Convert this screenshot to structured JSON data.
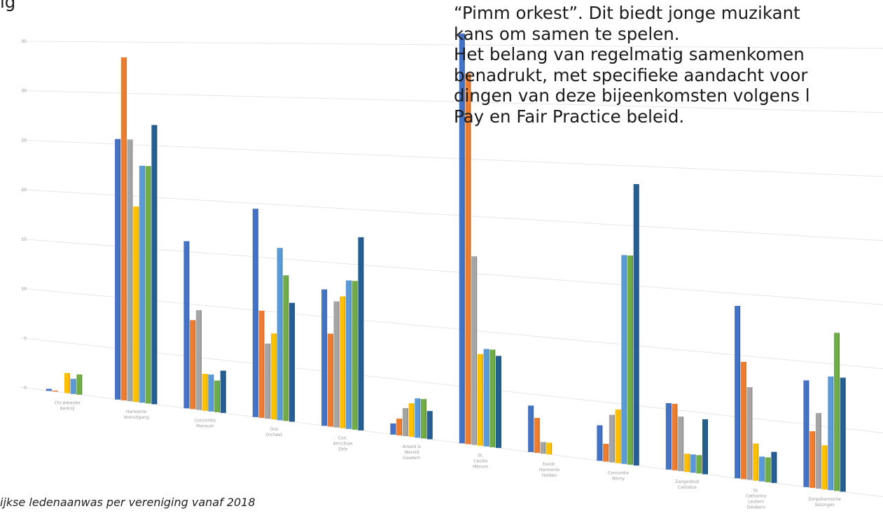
{
  "top_partial_text": "ig",
  "body_text": {
    "lines": [
      "“Pimm orkest”. Dit biedt jonge muzikant",
      "kans om samen te spelen.",
      "Het belang van regelmatig samenkomen",
      "benadrukt, met specifieke aandacht voor",
      "dingen van deze bijeenkomsten volgens l",
      "Pay en Fair Practice beleid."
    ]
  },
  "caption": "ijkse ledenaanwas per vereniging vanaf 2018",
  "colors": {
    "series": [
      "#4472C4",
      "#ED7D31",
      "#A5A5A5",
      "#FFC000",
      "#5B9BD5",
      "#70AD47",
      "#255E91"
    ]
  },
  "chart_data": {
    "type": "bar",
    "title": "",
    "xlabel": "",
    "ylabel": "",
    "ylim": [
      0,
      35
    ],
    "grid": true,
    "ytick_labels": [
      "0",
      "5",
      "10",
      "15",
      "20",
      "25",
      "30",
      "35"
    ],
    "categories": [
      "Chr.Arbeider Kerkrijl",
      "Harmonie Vooruitgang",
      "Concordia Mansum",
      "Ons Orchest",
      "Con. Amicitiae Zele",
      "Arbeid is Wereld Goedern",
      "St. Cecilia Menum",
      "Eendr. Harmonie Helden",
      "Concordia Winny",
      "Zangerklub Cantatus",
      "St. Catharina Leutern Giesbers",
      "Dorpsharmonie Sissingen"
    ],
    "series": [
      {
        "values": [
          0.2,
          25.5,
          16,
          19.5,
          12.5,
          1,
          36,
          4,
          3,
          5.5,
          14,
          8.5
        ]
      },
      {
        "values": [
          0.1,
          33.5,
          8.5,
          10,
          8.5,
          1.5,
          32.5,
          3,
          1.5,
          5.5,
          9.5,
          4.5
        ]
      },
      {
        "values": [
          0,
          25.5,
          9.5,
          7,
          11.5,
          2.5,
          16.5,
          1,
          4,
          4.5,
          7.5,
          6
        ]
      },
      {
        "values": [
          2,
          19,
          3.5,
          8,
          12,
          3,
          8,
          1,
          4.5,
          1.5,
          3,
          3.5
        ]
      },
      {
        "values": [
          1.5,
          23,
          3.5,
          16,
          13.5,
          3.5,
          8.5,
          0,
          17.5,
          1.5,
          2,
          9
        ]
      },
      {
        "values": [
          2,
          23,
          3,
          13.5,
          13.5,
          3.5,
          8.5,
          0,
          17.5,
          1.5,
          2,
          12.5
        ]
      },
      {
        "values": [
          0,
          27,
          4,
          11,
          17.5,
          2.5,
          8,
          0,
          23.5,
          4.5,
          2.5,
          9
        ]
      }
    ]
  }
}
